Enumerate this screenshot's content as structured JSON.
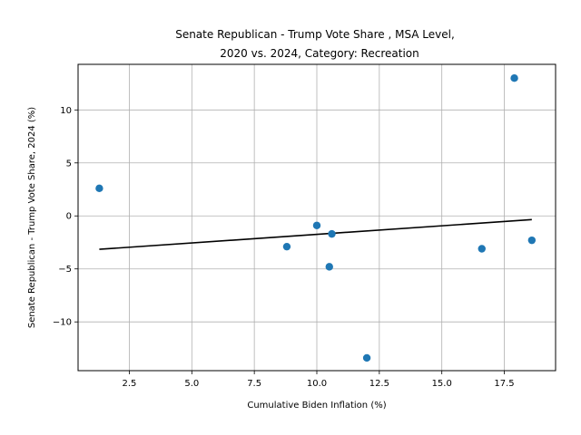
{
  "chart_data": {
    "type": "scatter",
    "title_lines": [
      "Senate Republican - Trump Vote Share , MSA Level,",
      "2020 vs. 2024, Category: Recreation"
    ],
    "xlabel": "Cumulative Biden Inflation (%)",
    "ylabel": "Senate Republican - Trump Vote Share, 2024 (%)",
    "xlim": [
      0.45,
      19.55
    ],
    "ylim": [
      -14.6,
      14.3
    ],
    "xticks": [
      2.5,
      5.0,
      7.5,
      10.0,
      12.5,
      15.0,
      17.5
    ],
    "xtick_labels": [
      "2.5",
      "5.0",
      "7.5",
      "10.0",
      "12.5",
      "15.0",
      "17.5"
    ],
    "yticks": [
      -10,
      -5,
      0,
      5,
      10
    ],
    "ytick_labels": [
      "−10",
      "−5",
      "0",
      "5",
      "10"
    ],
    "grid": true,
    "point_color": "#1f77b4",
    "line_color": "#000000",
    "points": [
      {
        "x": 1.3,
        "y": 2.6
      },
      {
        "x": 8.8,
        "y": -2.9
      },
      {
        "x": 10.0,
        "y": -0.9
      },
      {
        "x": 10.5,
        "y": -4.8
      },
      {
        "x": 10.6,
        "y": -1.7
      },
      {
        "x": 12.0,
        "y": -13.4
      },
      {
        "x": 16.6,
        "y": -3.1
      },
      {
        "x": 17.9,
        "y": 13.0
      },
      {
        "x": 18.6,
        "y": -2.3
      }
    ],
    "trendline": [
      {
        "x": 1.3,
        "y": -3.15
      },
      {
        "x": 18.6,
        "y": -0.35
      }
    ]
  }
}
